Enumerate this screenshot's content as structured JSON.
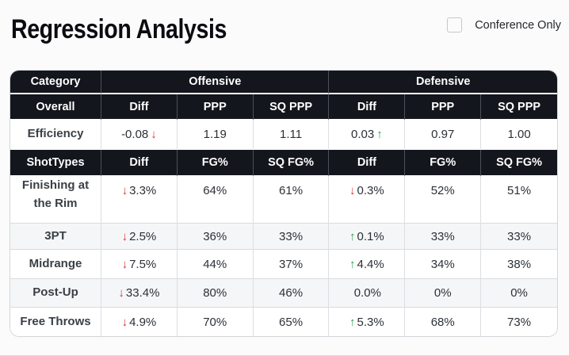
{
  "page": {
    "title": "Regression Analysis",
    "conference_checkbox_label": "Conference Only",
    "conference_checkbox_checked": false
  },
  "colors": {
    "header_bg": "#14161d",
    "negative_red": "#e03131",
    "positive_green": "#2f9e44",
    "stripe_bg": "#f5f6f7"
  },
  "table": {
    "top_header": {
      "category": "Category",
      "offensive": "Offensive",
      "defensive": "Defensive"
    },
    "overall": {
      "row_label": "Overall",
      "columns": [
        "Diff",
        "PPP",
        "SQ PPP",
        "Diff",
        "PPP",
        "SQ PPP"
      ]
    },
    "efficiency": {
      "label": "Efficiency",
      "offensive": {
        "diff": "-0.08",
        "diff_arrow": "↓",
        "ppp": "1.19",
        "sq_ppp": "1.11"
      },
      "defensive": {
        "diff": "0.03",
        "diff_arrow": "↑",
        "ppp": "0.97",
        "sq_ppp": "1.00"
      }
    },
    "shot_types": {
      "row_label": "ShotTypes",
      "columns": [
        "Diff",
        "FG%",
        "SQ FG%",
        "Diff",
        "FG%",
        "SQ FG%"
      ]
    },
    "rows": [
      {
        "label": "Finishing at the Rim",
        "off": {
          "arrow": "↓",
          "diff": "3.3%",
          "fg": "64%",
          "sq_fg": "61%"
        },
        "def": {
          "arrow": "↓",
          "diff": "0.3%",
          "fg": "52%",
          "sq_fg": "51%"
        }
      },
      {
        "label": "3PT",
        "off": {
          "arrow": "↓",
          "diff": "2.5%",
          "fg": "36%",
          "sq_fg": "33%"
        },
        "def": {
          "arrow": "↑",
          "diff": "0.1%",
          "fg": "33%",
          "sq_fg": "33%"
        }
      },
      {
        "label": "Midrange",
        "off": {
          "arrow": "↓",
          "diff": "7.5%",
          "fg": "44%",
          "sq_fg": "37%"
        },
        "def": {
          "arrow": "↑",
          "diff": "4.4%",
          "fg": "34%",
          "sq_fg": "38%"
        }
      },
      {
        "label": "Post-Up",
        "off": {
          "arrow": "↓",
          "diff": "33.4%",
          "fg": "80%",
          "sq_fg": "46%"
        },
        "def": {
          "arrow": "",
          "diff": "0.0%",
          "fg": "0%",
          "sq_fg": "0%"
        }
      },
      {
        "label": "Free Throws",
        "off": {
          "arrow": "↓",
          "diff": "4.9%",
          "fg": "70%",
          "sq_fg": "65%"
        },
        "def": {
          "arrow": "↑",
          "diff": "5.3%",
          "fg": "68%",
          "sq_fg": "73%"
        }
      }
    ]
  }
}
